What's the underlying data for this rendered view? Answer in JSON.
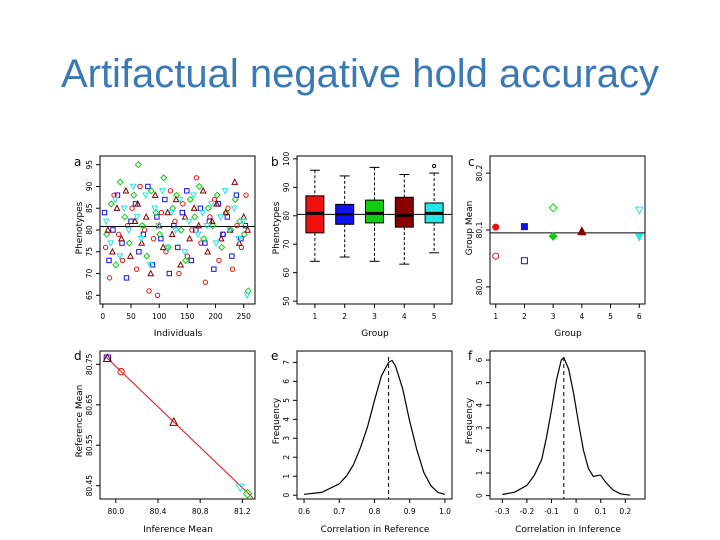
{
  "slide": {
    "title": "Artifactual negative hold accuracy"
  },
  "colors": {
    "title": "#3b79b5",
    "group_colors": [
      "#ee1111",
      "#1111ee",
      "#11cc11",
      "#880000",
      "#22e6e6"
    ],
    "refline": "#dd3333"
  },
  "chart_data": [
    {
      "panel": "a",
      "type": "scatter",
      "xlabel": "Individuals",
      "ylabel": "Phenotypes",
      "xlim": [
        -5,
        270
      ],
      "ylim": [
        63,
        97
      ],
      "xticks": [
        0,
        50,
        100,
        150,
        200,
        250
      ],
      "yticks": [
        65,
        70,
        75,
        80,
        85,
        90,
        95
      ],
      "hline": 80.8,
      "note": "scattered points, groups 1-5 coded by colour and marker shape",
      "series": [
        {
          "group": 1,
          "marker": "circle",
          "color": "#ee1111",
          "points": [
            [
              5,
              76
            ],
            [
              12,
              69
            ],
            [
              20,
              88
            ],
            [
              28,
              79
            ],
            [
              35,
              73
            ],
            [
              44,
              81
            ],
            [
              52,
              85
            ],
            [
              60,
              71
            ],
            [
              66,
              90
            ],
            [
              74,
              80
            ],
            [
              82,
              66
            ],
            [
              90,
              78
            ],
            [
              97,
              65
            ],
            [
              104,
              84
            ],
            [
              112,
              75
            ],
            [
              120,
              89
            ],
            [
              128,
              82
            ],
            [
              135,
              70
            ],
            [
              142,
              86
            ],
            [
              150,
              74
            ],
            [
              158,
              80
            ],
            [
              166,
              92
            ],
            [
              174,
              77
            ],
            [
              182,
              68
            ],
            [
              190,
              83
            ],
            [
              198,
              87
            ],
            [
              206,
              73
            ],
            [
              214,
              79
            ],
            [
              222,
              85
            ],
            [
              230,
              71
            ],
            [
              238,
              81
            ],
            [
              246,
              76
            ],
            [
              254,
              88
            ]
          ]
        },
        {
          "group": 2,
          "marker": "square",
          "color": "#1111ee",
          "points": [
            [
              3,
              84
            ],
            [
              11,
              73
            ],
            [
              18,
              80
            ],
            [
              26,
              88
            ],
            [
              34,
              77
            ],
            [
              42,
              69
            ],
            [
              50,
              82
            ],
            [
              58,
              86
            ],
            [
              64,
              75
            ],
            [
              72,
              79
            ],
            [
              80,
              90
            ],
            [
              88,
              72
            ],
            [
              96,
              83
            ],
            [
              103,
              78
            ],
            [
              110,
              87
            ],
            [
              118,
              70
            ],
            [
              126,
              81
            ],
            [
              133,
              76
            ],
            [
              141,
              84
            ],
            [
              149,
              89
            ],
            [
              157,
              73
            ],
            [
              165,
              80
            ],
            [
              173,
              85
            ],
            [
              181,
              77
            ],
            [
              189,
              82
            ],
            [
              197,
              71
            ],
            [
              205,
              86
            ],
            [
              213,
              79
            ],
            [
              221,
              83
            ],
            [
              229,
              74
            ],
            [
              237,
              88
            ],
            [
              245,
              78
            ],
            [
              253,
              81
            ]
          ]
        },
        {
          "group": 3,
          "marker": "diamond",
          "color": "#11cc11",
          "points": [
            [
              7,
              79
            ],
            [
              15,
              86
            ],
            [
              23,
              72
            ],
            [
              31,
              91
            ],
            [
              39,
              83
            ],
            [
              47,
              77
            ],
            [
              55,
              88
            ],
            [
              63,
              95
            ],
            [
              70,
              81
            ],
            [
              78,
              74
            ],
            [
              86,
              89
            ],
            [
              94,
              84
            ],
            [
              101,
              79
            ],
            [
              108,
              92
            ],
            [
              116,
              76
            ],
            [
              124,
              85
            ],
            [
              131,
              88
            ],
            [
              139,
              80
            ],
            [
              147,
              73
            ],
            [
              155,
              87
            ],
            [
              163,
              83
            ],
            [
              171,
              90
            ],
            [
              179,
              78
            ],
            [
              187,
              85
            ],
            [
              195,
              81
            ],
            [
              203,
              88
            ],
            [
              211,
              76
            ],
            [
              219,
              84
            ],
            [
              227,
              80
            ],
            [
              235,
              87
            ],
            [
              243,
              82
            ],
            [
              251,
              79
            ],
            [
              258,
              66
            ]
          ]
        },
        {
          "group": 4,
          "marker": "triangle",
          "color": "#880000",
          "points": [
            [
              9,
              80
            ],
            [
              17,
              75
            ],
            [
              25,
              85
            ],
            [
              33,
              78
            ],
            [
              41,
              89
            ],
            [
              49,
              74
            ],
            [
              57,
              82
            ],
            [
              62,
              86
            ],
            [
              69,
              77
            ],
            [
              77,
              83
            ],
            [
              85,
              70
            ],
            [
              93,
              88
            ],
            [
              100,
              81
            ],
            [
              107,
              76
            ],
            [
              115,
              84
            ],
            [
              123,
              79
            ],
            [
              130,
              87
            ],
            [
              138,
              72
            ],
            [
              146,
              83
            ],
            [
              154,
              78
            ],
            [
              162,
              85
            ],
            [
              170,
              81
            ],
            [
              178,
              89
            ],
            [
              186,
              75
            ],
            [
              194,
              82
            ],
            [
              202,
              86
            ],
            [
              210,
              78
            ],
            [
              218,
              84
            ],
            [
              226,
              80
            ],
            [
              234,
              91
            ],
            [
              242,
              77
            ],
            [
              250,
              83
            ],
            [
              257,
              80
            ]
          ]
        },
        {
          "group": 5,
          "marker": "triangle-down",
          "color": "#22e6e6",
          "points": [
            [
              6,
              82
            ],
            [
              14,
              77
            ],
            [
              22,
              87
            ],
            [
              30,
              74
            ],
            [
              38,
              85
            ],
            [
              46,
              80
            ],
            [
              54,
              90
            ],
            [
              61,
              83
            ],
            [
              68,
              78
            ],
            [
              76,
              88
            ],
            [
              84,
              72
            ],
            [
              92,
              85
            ],
            [
              99,
              81
            ],
            [
              106,
              89
            ],
            [
              114,
              76
            ],
            [
              122,
              84
            ],
            [
              129,
              80
            ],
            [
              137,
              87
            ],
            [
              145,
              75
            ],
            [
              153,
              82
            ],
            [
              161,
              88
            ],
            [
              169,
              79
            ],
            [
              177,
              84
            ],
            [
              185,
              81
            ],
            [
              193,
              86
            ],
            [
              201,
              77
            ],
            [
              209,
              83
            ],
            [
              217,
              89
            ],
            [
              225,
              80
            ],
            [
              233,
              85
            ],
            [
              241,
              78
            ],
            [
              249,
              82
            ],
            [
              256,
              65
            ]
          ]
        }
      ]
    },
    {
      "panel": "b",
      "type": "box",
      "xlabel": "Group",
      "ylabel": "Phenotypes",
      "categories": [
        "1",
        "2",
        "3",
        "4",
        "5"
      ],
      "ylim": [
        49,
        101
      ],
      "yticks": [
        50,
        60,
        70,
        80,
        90,
        100
      ],
      "hline": 80.5,
      "boxes": [
        {
          "min": 64,
          "q1": 74,
          "median": 81,
          "q3": 87,
          "max": 96,
          "color": "#ee1111"
        },
        {
          "min": 65.5,
          "q1": 77,
          "median": 80.5,
          "q3": 84,
          "max": 94,
          "color": "#1111ee"
        },
        {
          "min": 64,
          "q1": 77.5,
          "median": 81,
          "q3": 85.5,
          "max": 97,
          "color": "#11cc11"
        },
        {
          "min": 63,
          "q1": 76,
          "median": 80,
          "q3": 86.5,
          "max": 94.5,
          "color": "#880000"
        },
        {
          "min": 67,
          "q1": 77.5,
          "median": 81,
          "q3": 84.5,
          "max": 95,
          "color": "#22e6e6"
        }
      ],
      "outliers": [
        {
          "group": 5,
          "value": 97.5
        }
      ]
    },
    {
      "panel": "c",
      "type": "scatter",
      "xlabel": "Group",
      "ylabel": "Group Mean",
      "xlim": [
        0.8,
        6.2
      ],
      "ylim": [
        79.97,
        80.23
      ],
      "xticks": [
        1,
        2,
        3,
        4,
        5,
        6
      ],
      "yticks": [
        80.0,
        80.1,
        80.2
      ],
      "ytick_labels": [
        "80.0",
        "80.1",
        "80.2"
      ],
      "hline": 80.095,
      "points": [
        {
          "x": 1,
          "y": 80.105,
          "marker": "circle-filled",
          "color": "#ee1111"
        },
        {
          "x": 1,
          "y": 80.054,
          "marker": "circle",
          "color": "#ee1111"
        },
        {
          "x": 2,
          "y": 80.106,
          "marker": "square-filled",
          "color": "#1111ee"
        },
        {
          "x": 2,
          "y": 80.046,
          "marker": "square",
          "color": "#1111ee"
        },
        {
          "x": 3,
          "y": 80.139,
          "marker": "diamond",
          "color": "#11cc11"
        },
        {
          "x": 3,
          "y": 80.089,
          "marker": "diamond-filled",
          "color": "#11cc11"
        },
        {
          "x": 4,
          "y": 80.098,
          "marker": "triangle-filled",
          "color": "#880000"
        },
        {
          "x": 4,
          "y": 80.097,
          "marker": "triangle",
          "color": "#880000"
        },
        {
          "x": 6,
          "y": 80.135,
          "marker": "triangle-down",
          "color": "#22e6e6"
        },
        {
          "x": 6,
          "y": 80.088,
          "marker": "triangle-down-filled",
          "color": "#22e6e6"
        }
      ]
    },
    {
      "panel": "d",
      "type": "scatter",
      "xlabel": "Inference Mean",
      "ylabel": "Reference Mean",
      "xlim": [
        79.85,
        81.32
      ],
      "ylim": [
        80.417,
        80.783
      ],
      "xticks": [
        80.0,
        80.4,
        80.8,
        81.2
      ],
      "yticks": [
        80.45,
        80.55,
        80.65,
        80.75
      ],
      "ytick_labels": [
        "80.45",
        "80.55",
        "80.65",
        "80.75"
      ],
      "line": {
        "from": [
          79.9,
          80.77
        ],
        "to": [
          81.3,
          80.42
        ]
      },
      "points": [
        {
          "x": 79.92,
          "y": 80.765,
          "marker": "square",
          "color": "#1111ee"
        },
        {
          "x": 79.92,
          "y": 80.765,
          "marker": "triangle",
          "color": "#880000"
        },
        {
          "x": 80.05,
          "y": 80.732,
          "marker": "circle",
          "color": "#ee1111"
        },
        {
          "x": 80.55,
          "y": 80.607,
          "marker": "triangle",
          "color": "#880000"
        },
        {
          "x": 81.18,
          "y": 80.446,
          "marker": "triangle-down",
          "color": "#22e6e6"
        },
        {
          "x": 81.25,
          "y": 80.43,
          "marker": "diamond",
          "color": "#11cc11"
        }
      ]
    },
    {
      "panel": "e",
      "type": "line",
      "xlabel": "Correlation in Reference",
      "ylabel": "Frequency",
      "xlim": [
        0.58,
        1.02
      ],
      "ylim": [
        -0.2,
        7.6
      ],
      "xticks": [
        0.6,
        0.7,
        0.8,
        0.9,
        1.0
      ],
      "xtick_labels": [
        "0.6",
        "0.7",
        "0.8",
        "0.9",
        "1.0"
      ],
      "yticks": [
        0,
        1,
        2,
        3,
        4,
        5,
        6,
        7
      ],
      "vline": 0.84,
      "x": [
        0.6,
        0.65,
        0.7,
        0.72,
        0.74,
        0.76,
        0.78,
        0.8,
        0.82,
        0.84,
        0.85,
        0.86,
        0.88,
        0.9,
        0.92,
        0.94,
        0.96,
        0.98,
        1.0
      ],
      "y": [
        0.05,
        0.15,
        0.6,
        1.0,
        1.6,
        2.5,
        3.6,
        5.0,
        6.3,
        7.0,
        7.1,
        6.8,
        5.6,
        3.9,
        2.4,
        1.2,
        0.5,
        0.15,
        0.05
      ]
    },
    {
      "panel": "f",
      "type": "line",
      "xlabel": "Correlation in Inference",
      "ylabel": "Frequency",
      "xlim": [
        -0.35,
        0.28
      ],
      "ylim": [
        -0.15,
        6.4
      ],
      "xticks": [
        -0.3,
        -0.2,
        -0.1,
        0.0,
        0.1,
        0.2
      ],
      "xtick_labels": [
        "-0.3",
        "-0.2",
        "-0.1",
        "0",
        "0.1",
        "0.2"
      ],
      "yticks": [
        0,
        1,
        2,
        3,
        4,
        5,
        6
      ],
      "vline": -0.05,
      "x": [
        -0.3,
        -0.25,
        -0.2,
        -0.17,
        -0.14,
        -0.12,
        -0.1,
        -0.08,
        -0.06,
        -0.05,
        -0.03,
        -0.01,
        0.01,
        0.03,
        0.05,
        0.07,
        0.09,
        0.1,
        0.12,
        0.15,
        0.18,
        0.22
      ],
      "y": [
        0.05,
        0.15,
        0.45,
        0.9,
        1.6,
        2.6,
        3.8,
        5.1,
        6.0,
        6.1,
        5.6,
        4.5,
        3.2,
        2.0,
        1.2,
        0.85,
        0.9,
        0.9,
        0.6,
        0.25,
        0.08,
        0.02
      ]
    }
  ],
  "panels_text": {
    "a": {
      "label": "a",
      "xlabel": "Individuals",
      "ylabel": "Phenotypes"
    },
    "b": {
      "label": "b",
      "xlabel": "Group",
      "ylabel": "Phenotypes"
    },
    "c": {
      "label": "c",
      "xlabel": "Group",
      "ylabel": "Group Mean"
    },
    "d": {
      "label": "d",
      "xlabel": "Inference Mean",
      "ylabel": "Reference Mean"
    },
    "e": {
      "label": "e",
      "xlabel": "Correlation in Reference",
      "ylabel": "Frequency"
    },
    "f": {
      "label": "f",
      "xlabel": "Correlation in Inference",
      "ylabel": "Frequency"
    }
  }
}
